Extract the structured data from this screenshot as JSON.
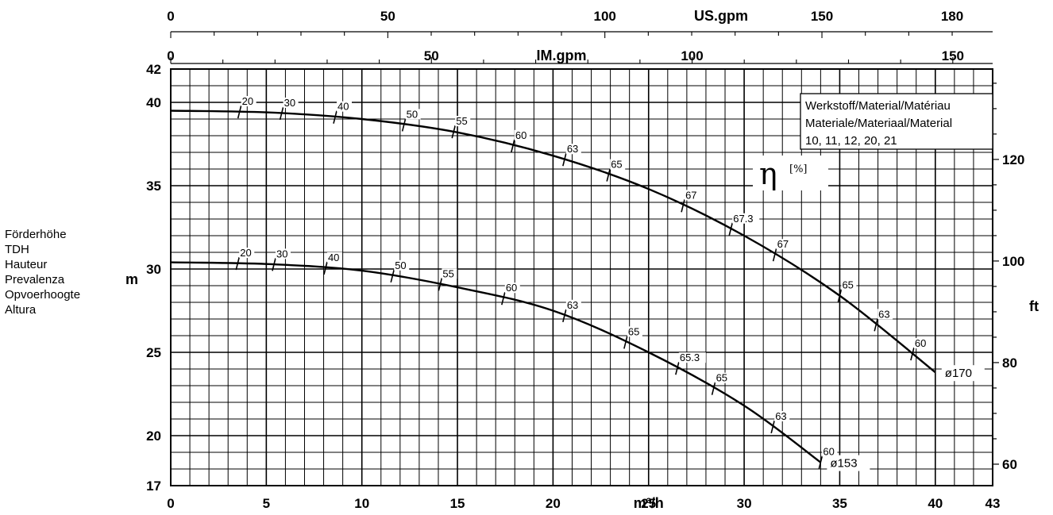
{
  "side_label": {
    "lines": [
      "Förderhöhe",
      "TDH",
      "Hauteur",
      "Prevalenza",
      "Opvoerhoogte",
      "Altura"
    ]
  },
  "legend": {
    "lines": [
      "Werkstoff/Material/Matériau",
      "Materiale/Materiaal/Material",
      "10, 11, 12, 20, 21"
    ]
  },
  "eta_label": {
    "symbol": "η",
    "unit": "[%]"
  },
  "chart_data": {
    "type": "line",
    "x_primary": {
      "label": "m³/h",
      "range": [
        0,
        43
      ],
      "ticks": [
        0,
        5,
        10,
        15,
        20,
        25,
        30,
        35,
        40,
        43
      ]
    },
    "x_secondary_us": {
      "label": "US.gpm",
      "ticks": [
        0,
        50,
        100,
        150,
        180
      ]
    },
    "x_secondary_im": {
      "label": "IM.gpm",
      "ticks": [
        0,
        50,
        100,
        150
      ]
    },
    "y_primary": {
      "label": "m",
      "range": [
        17,
        42
      ],
      "ticks": [
        17,
        20,
        25,
        30,
        35,
        40,
        42
      ]
    },
    "y_secondary": {
      "label": "ft",
      "ticks": [
        60,
        80,
        100,
        120
      ]
    },
    "grid": true,
    "series": [
      {
        "name": "ø170",
        "x": [
          0,
          5,
          10,
          15,
          20,
          25,
          30,
          35,
          40
        ],
        "y": [
          39.5,
          39.4,
          39.0,
          38.2,
          36.8,
          34.8,
          32.0,
          28.4,
          23.8
        ],
        "efficiency_marks": [
          {
            "x": 3.6,
            "label": "20"
          },
          {
            "x": 5.8,
            "label": "30"
          },
          {
            "x": 8.6,
            "label": "40"
          },
          {
            "x": 12.2,
            "label": "50"
          },
          {
            "x": 14.8,
            "label": "55"
          },
          {
            "x": 17.9,
            "label": "60"
          },
          {
            "x": 20.6,
            "label": "63"
          },
          {
            "x": 22.9,
            "label": "65"
          },
          {
            "x": 26.8,
            "label": "67"
          },
          {
            "x": 29.3,
            "label": "67.3"
          },
          {
            "x": 31.6,
            "label": "67"
          },
          {
            "x": 35.0,
            "label": "65"
          },
          {
            "x": 36.9,
            "label": "63"
          },
          {
            "x": 38.8,
            "label": "60"
          }
        ]
      },
      {
        "name": "ø153",
        "x": [
          0,
          5,
          10,
          15,
          20,
          25,
          30,
          34
        ],
        "y": [
          30.4,
          30.3,
          29.9,
          28.9,
          27.5,
          25.0,
          21.8,
          18.4
        ],
        "efficiency_marks": [
          {
            "x": 3.5,
            "label": "20"
          },
          {
            "x": 5.4,
            "label": "30"
          },
          {
            "x": 8.1,
            "label": "40"
          },
          {
            "x": 11.6,
            "label": "50"
          },
          {
            "x": 14.1,
            "label": "55"
          },
          {
            "x": 17.4,
            "label": "60"
          },
          {
            "x": 20.6,
            "label": "63"
          },
          {
            "x": 23.8,
            "label": "65"
          },
          {
            "x": 26.5,
            "label": "65.3"
          },
          {
            "x": 28.4,
            "label": "65"
          },
          {
            "x": 31.5,
            "label": "63"
          },
          {
            "x": 34.0,
            "label": "60"
          }
        ]
      }
    ]
  }
}
